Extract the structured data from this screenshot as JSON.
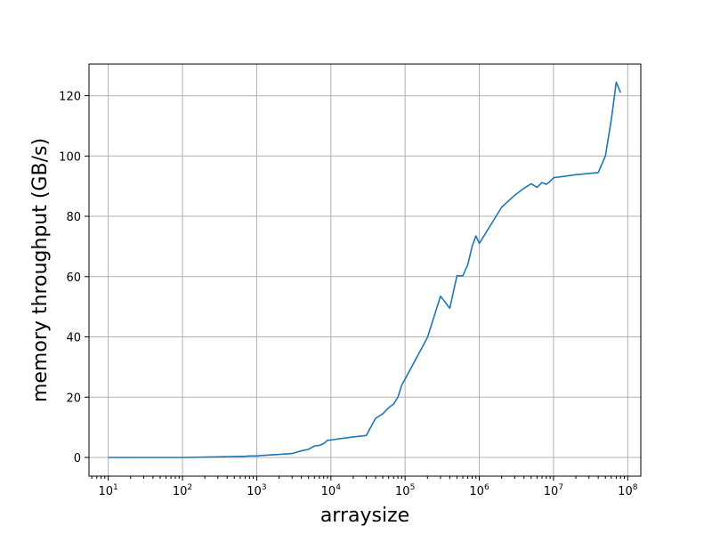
{
  "chart_data": {
    "type": "line",
    "title": "",
    "xlabel": "arraysize",
    "ylabel": "memory throughput (GB/s)",
    "xscale": "log",
    "xlim": [
      5.5,
      150000000
    ],
    "ylim": [
      -6.2,
      130.5
    ],
    "grid": true,
    "legend": "none",
    "x_ticks": [
      {
        "value": 10,
        "base": "10",
        "exp": "1"
      },
      {
        "value": 100,
        "base": "10",
        "exp": "2"
      },
      {
        "value": 1000,
        "base": "10",
        "exp": "3"
      },
      {
        "value": 10000,
        "base": "10",
        "exp": "4"
      },
      {
        "value": 100000,
        "base": "10",
        "exp": "5"
      },
      {
        "value": 1000000,
        "base": "10",
        "exp": "6"
      },
      {
        "value": 10000000,
        "base": "10",
        "exp": "7"
      },
      {
        "value": 100000000,
        "base": "10",
        "exp": "8"
      }
    ],
    "y_ticks": [
      {
        "value": 0,
        "label": "0"
      },
      {
        "value": 20,
        "label": "20"
      },
      {
        "value": 40,
        "label": "40"
      },
      {
        "value": 60,
        "label": "60"
      },
      {
        "value": 80,
        "label": "80"
      },
      {
        "value": 100,
        "label": "100"
      },
      {
        "value": 120,
        "label": "120"
      }
    ],
    "series": [
      {
        "color": "#1f77b4",
        "x": [
          10,
          100,
          300,
          700,
          800,
          1000,
          1100,
          2000,
          3000,
          4000,
          5000,
          6000,
          7000,
          8000,
          9000,
          10000,
          20000,
          30000,
          40000,
          50000,
          60000,
          70000,
          80000,
          90000,
          100000,
          200000,
          300000,
          400000,
          500000,
          600000,
          700000,
          800000,
          900000,
          1000000,
          2000000,
          3000000,
          4000000,
          5000000,
          6000000,
          7000000,
          8000000,
          9000000,
          10000000,
          20000000,
          40000000,
          50000000,
          60000000,
          70000000,
          80000000
        ],
        "y": [
          0,
          0,
          0.2,
          0.4,
          0.5,
          0.5,
          0.6,
          1.0,
          1.3,
          2.2,
          2.7,
          3.8,
          4.0,
          4.6,
          5.7,
          5.8,
          6.8,
          7.3,
          13.0,
          14.5,
          16.5,
          17.7,
          20.0,
          24.0,
          26.0,
          39.8,
          53.5,
          49.5,
          60.3,
          60.3,
          64.0,
          70.0,
          73.5,
          71.0,
          83.0,
          87.0,
          89.3,
          90.8,
          89.6,
          91.2,
          90.6,
          91.6,
          92.8,
          93.8,
          94.5,
          100.0,
          112.0,
          124.5,
          121.0
        ]
      }
    ]
  }
}
